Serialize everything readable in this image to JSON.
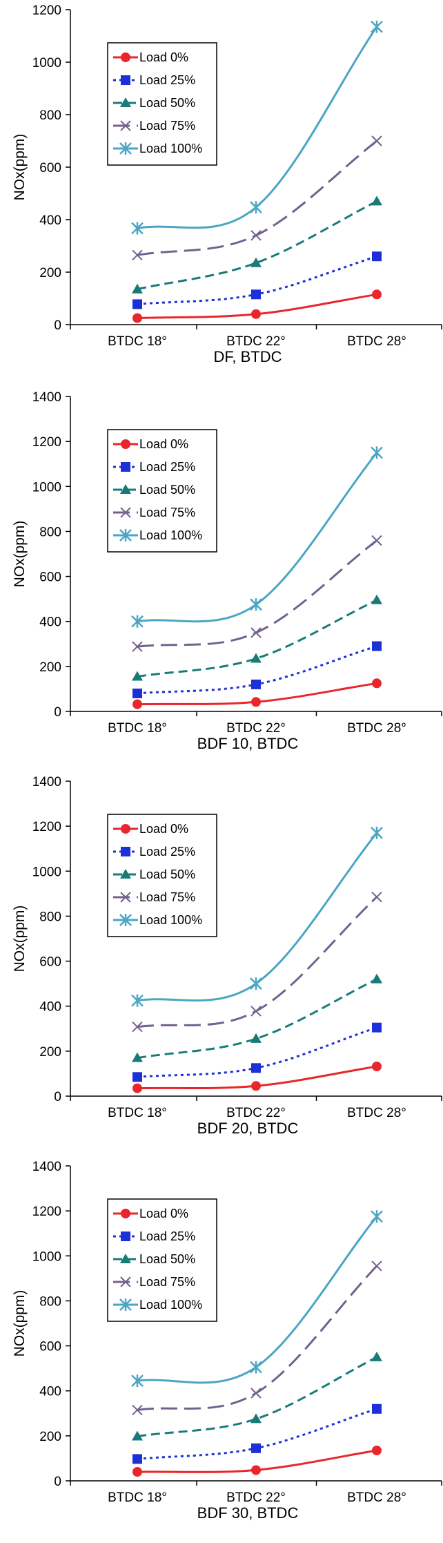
{
  "chart_data": [
    {
      "type": "line",
      "xlabel": "DF, BTDC",
      "ylabel": "NOx(ppm)",
      "categories": [
        "BTDC 18°",
        "BTDC 22°",
        "BTDC 28°"
      ],
      "ylim": [
        0,
        1200
      ],
      "ytick_step": 200,
      "legend_position": "top-left",
      "series": [
        {
          "name": "Load 0%",
          "values": [
            25,
            40,
            115
          ],
          "color": "#e8262b",
          "dash": "solid",
          "marker": "circle"
        },
        {
          "name": "Load 25%",
          "values": [
            78,
            115,
            260
          ],
          "color": "#1c2fd8",
          "dash": "dot",
          "marker": "square"
        },
        {
          "name": "Load 50%",
          "values": [
            135,
            235,
            470
          ],
          "color": "#187b78",
          "dash": "dash",
          "marker": "triangle"
        },
        {
          "name": "Load 75%",
          "values": [
            265,
            340,
            700
          ],
          "color": "#73608f",
          "dash": "longdash",
          "marker": "x"
        },
        {
          "name": "Load 100%",
          "values": [
            367,
            447,
            1135
          ],
          "color": "#4aa6c3",
          "dash": "solid",
          "marker": "star"
        }
      ]
    },
    {
      "type": "line",
      "xlabel": "BDF 10, BTDC",
      "ylabel": "NOx(ppm)",
      "categories": [
        "BTDC 18°",
        "BTDC 22°",
        "BTDC 28°"
      ],
      "ylim": [
        0,
        1400
      ],
      "ytick_step": 200,
      "legend_position": "top-left",
      "series": [
        {
          "name": "Load 0%",
          "values": [
            32,
            42,
            125
          ],
          "color": "#e8262b",
          "dash": "solid",
          "marker": "circle"
        },
        {
          "name": "Load 25%",
          "values": [
            80,
            120,
            290
          ],
          "color": "#1c2fd8",
          "dash": "dot",
          "marker": "square"
        },
        {
          "name": "Load 50%",
          "values": [
            155,
            235,
            495
          ],
          "color": "#187b78",
          "dash": "dash",
          "marker": "triangle"
        },
        {
          "name": "Load 75%",
          "values": [
            288,
            350,
            760
          ],
          "color": "#73608f",
          "dash": "longdash",
          "marker": "x"
        },
        {
          "name": "Load 100%",
          "values": [
            400,
            475,
            1150
          ],
          "color": "#4aa6c3",
          "dash": "solid",
          "marker": "star"
        }
      ]
    },
    {
      "type": "line",
      "xlabel": "BDF 20, BTDC",
      "ylabel": "NOx(ppm)",
      "categories": [
        "BTDC 18°",
        "BTDC 22°",
        "BTDC 28°"
      ],
      "ylim": [
        0,
        1400
      ],
      "ytick_step": 200,
      "legend_position": "top-left",
      "series": [
        {
          "name": "Load 0%",
          "values": [
            35,
            45,
            132
          ],
          "color": "#e8262b",
          "dash": "solid",
          "marker": "circle"
        },
        {
          "name": "Load 25%",
          "values": [
            85,
            125,
            305
          ],
          "color": "#1c2fd8",
          "dash": "dot",
          "marker": "square"
        },
        {
          "name": "Load 50%",
          "values": [
            170,
            255,
            520
          ],
          "color": "#187b78",
          "dash": "dash",
          "marker": "triangle"
        },
        {
          "name": "Load 75%",
          "values": [
            308,
            378,
            885
          ],
          "color": "#73608f",
          "dash": "longdash",
          "marker": "x"
        },
        {
          "name": "Load 100%",
          "values": [
            425,
            500,
            1170
          ],
          "color": "#4aa6c3",
          "dash": "solid",
          "marker": "star"
        }
      ]
    },
    {
      "type": "line",
      "xlabel": "BDF 30, BTDC",
      "ylabel": "NOx(ppm)",
      "categories": [
        "BTDC 18°",
        "BTDC 22°",
        "BTDC 28°"
      ],
      "ylim": [
        0,
        1400
      ],
      "ytick_step": 200,
      "legend_position": "top-left",
      "series": [
        {
          "name": "Load 0%",
          "values": [
            40,
            48,
            135
          ],
          "color": "#e8262b",
          "dash": "solid",
          "marker": "circle"
        },
        {
          "name": "Load 25%",
          "values": [
            97,
            145,
            320
          ],
          "color": "#1c2fd8",
          "dash": "dot",
          "marker": "square"
        },
        {
          "name": "Load 50%",
          "values": [
            198,
            275,
            550
          ],
          "color": "#187b78",
          "dash": "dash",
          "marker": "triangle"
        },
        {
          "name": "Load 75%",
          "values": [
            315,
            390,
            955
          ],
          "color": "#73608f",
          "dash": "longdash",
          "marker": "x"
        },
        {
          "name": "Load 100%",
          "values": [
            445,
            505,
            1175
          ],
          "color": "#4aa6c3",
          "dash": "solid",
          "marker": "star"
        }
      ]
    }
  ]
}
